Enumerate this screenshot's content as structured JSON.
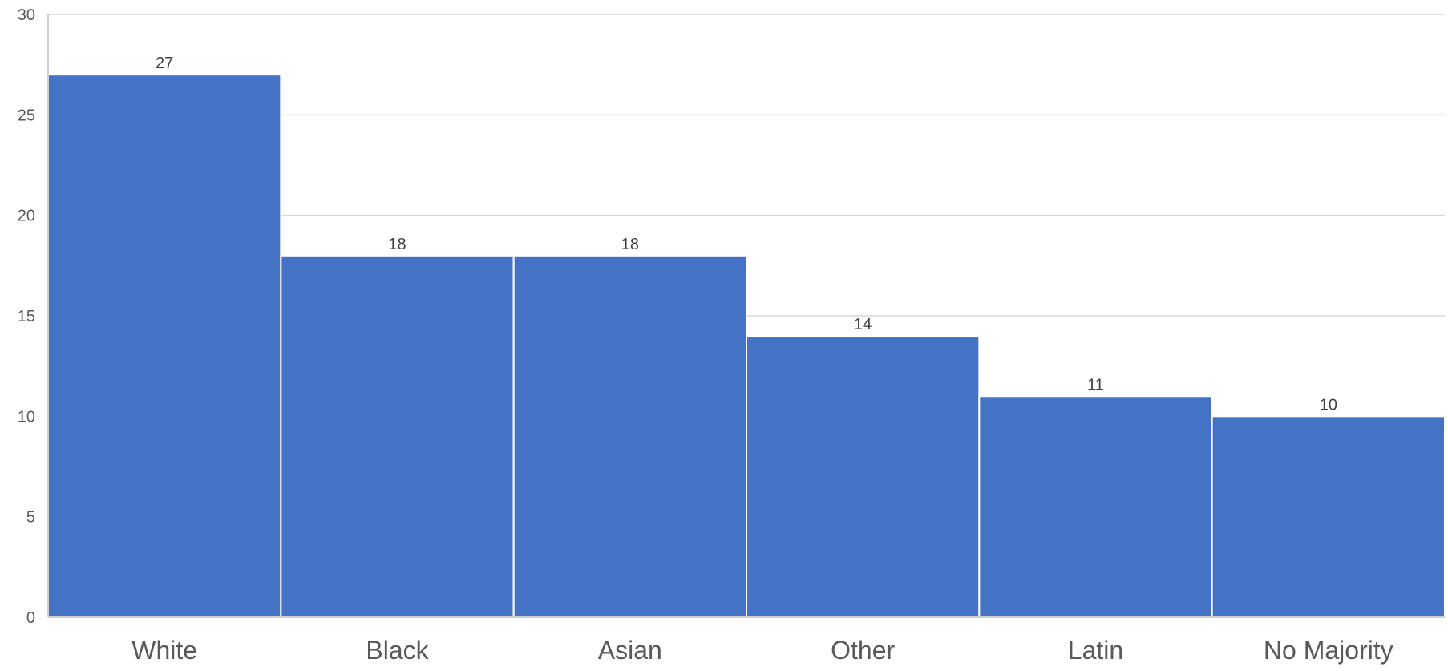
{
  "chart_data": {
    "type": "bar",
    "categories": [
      "White",
      "Black",
      "Asian",
      "Other",
      "Latin",
      "No Majority"
    ],
    "values": [
      27,
      18,
      18,
      14,
      11,
      10
    ],
    "data_labels": [
      "27",
      "18",
      "18",
      "14",
      "11",
      "10"
    ],
    "y_ticks": [
      0,
      5,
      10,
      15,
      20,
      25,
      30
    ],
    "ylim": [
      0,
      30
    ],
    "title": "",
    "xlabel": "",
    "ylabel": "",
    "grid": true,
    "legend": "none",
    "colors": {
      "bar": "#4472C4",
      "bar_separator": "#FFFFFF",
      "grid": "#D9D9D9",
      "axis": "#BFBFBF"
    }
  }
}
